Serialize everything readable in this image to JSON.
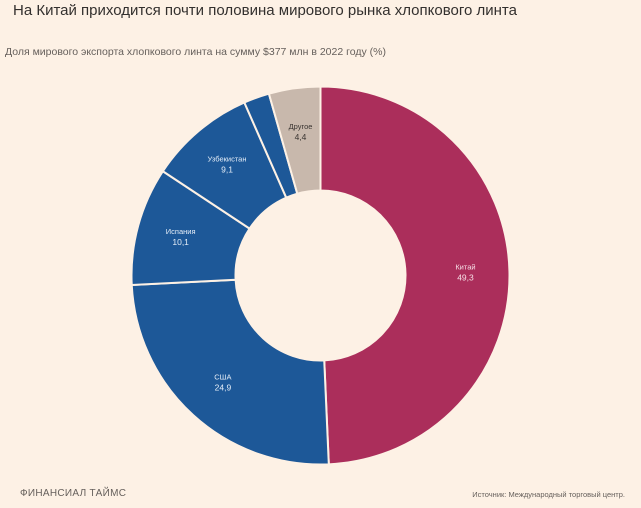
{
  "header": {
    "title": "На Китай приходится почти половина мирового рынка хлопкового линта",
    "subtitle": "Доля мирового экспорта хлопкового линта на сумму $377 млн в 2022 году (%)"
  },
  "footer": {
    "brand": "ФИНАНСИАЛ ТАЙМС",
    "source": "Источник: Международный торговый центр."
  },
  "chart_data": {
    "type": "pie",
    "donut": true,
    "title": "На Китай приходится почти половина мирового рынка хлопкового линта",
    "subtitle": "Доля мирового экспорта хлопкового линта на сумму $377 млн в 2022 году (%)",
    "start": "12 o'clock",
    "direction": "clockwise",
    "slices": [
      {
        "label": "Китай",
        "value": 49.3,
        "display": "49,3",
        "color": "#ab2e5b",
        "text_color": "#f6dfe6"
      },
      {
        "label": "США",
        "value": 24.9,
        "display": "24,9",
        "color": "#1d5898",
        "text_color": "#e4edf7"
      },
      {
        "label": "Испания",
        "value": 10.1,
        "display": "10,1",
        "color": "#1d5898",
        "text_color": "#e4edf7"
      },
      {
        "label": "Узбекистан",
        "value": 9.1,
        "display": "9,1",
        "color": "#1d5898",
        "text_color": "#e4edf7"
      },
      {
        "label": "",
        "value": 2.2,
        "display": "",
        "color": "#1d5898",
        "text_color": "#e4edf7"
      },
      {
        "label": "Другое",
        "value": 4.4,
        "display": "4,4",
        "color": "#c8b8ac",
        "text_color": "#3a3532"
      }
    ]
  }
}
